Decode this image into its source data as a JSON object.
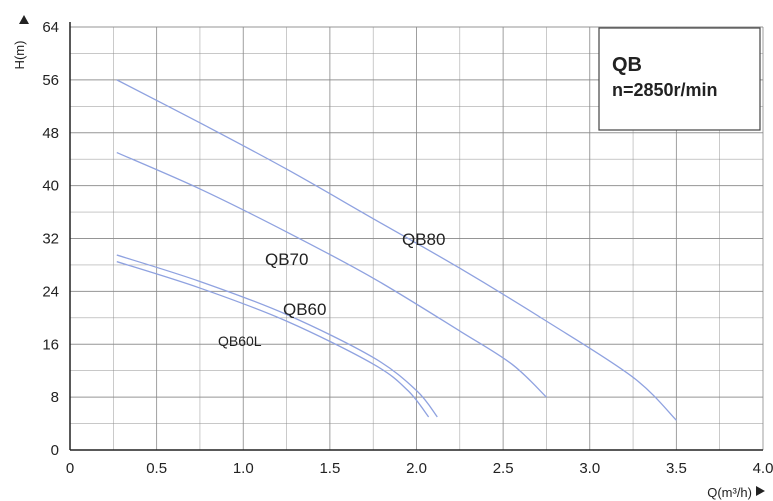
{
  "chart_data": {
    "type": "line",
    "title": "",
    "xlabel": "Q(m³/h)",
    "ylabel": "H(m)",
    "xlim": [
      0,
      4.0
    ],
    "ylim": [
      0,
      64
    ],
    "grid": true,
    "x_ticks": [
      "0",
      "0.5",
      "1.0",
      "1.5",
      "2.0",
      "2.5",
      "3.0",
      "3.5",
      "4.0"
    ],
    "y_ticks": [
      "0",
      "8",
      "16",
      "24",
      "32",
      "40",
      "48",
      "56",
      "64"
    ],
    "info_box": {
      "line1": "QB",
      "line2": "n=2850r/min"
    },
    "colors": {
      "curve": "#8fa2e0",
      "grid": "#8a8a8a",
      "axis": "#222222"
    },
    "series": [
      {
        "name": "QB80",
        "x": [
          0.27,
          0.75,
          1.25,
          1.75,
          2.25,
          2.75,
          3.25,
          3.5
        ],
        "y": [
          56,
          49.5,
          42.5,
          35,
          27.5,
          19.5,
          11,
          4.5
        ]
      },
      {
        "name": "QB70",
        "x": [
          0.27,
          0.75,
          1.25,
          1.75,
          2.25,
          2.55,
          2.75
        ],
        "y": [
          45,
          39.5,
          33,
          26,
          18,
          13,
          8
        ]
      },
      {
        "name": "QB60",
        "x": [
          0.27,
          0.75,
          1.25,
          1.75,
          2.0,
          2.12
        ],
        "y": [
          29.5,
          25.5,
          20.5,
          14,
          9,
          5
        ]
      },
      {
        "name": "QB60L",
        "x": [
          0.27,
          0.75,
          1.25,
          1.75,
          1.95,
          2.07
        ],
        "y": [
          28.5,
          24.5,
          19.5,
          13,
          9,
          5
        ]
      }
    ]
  }
}
